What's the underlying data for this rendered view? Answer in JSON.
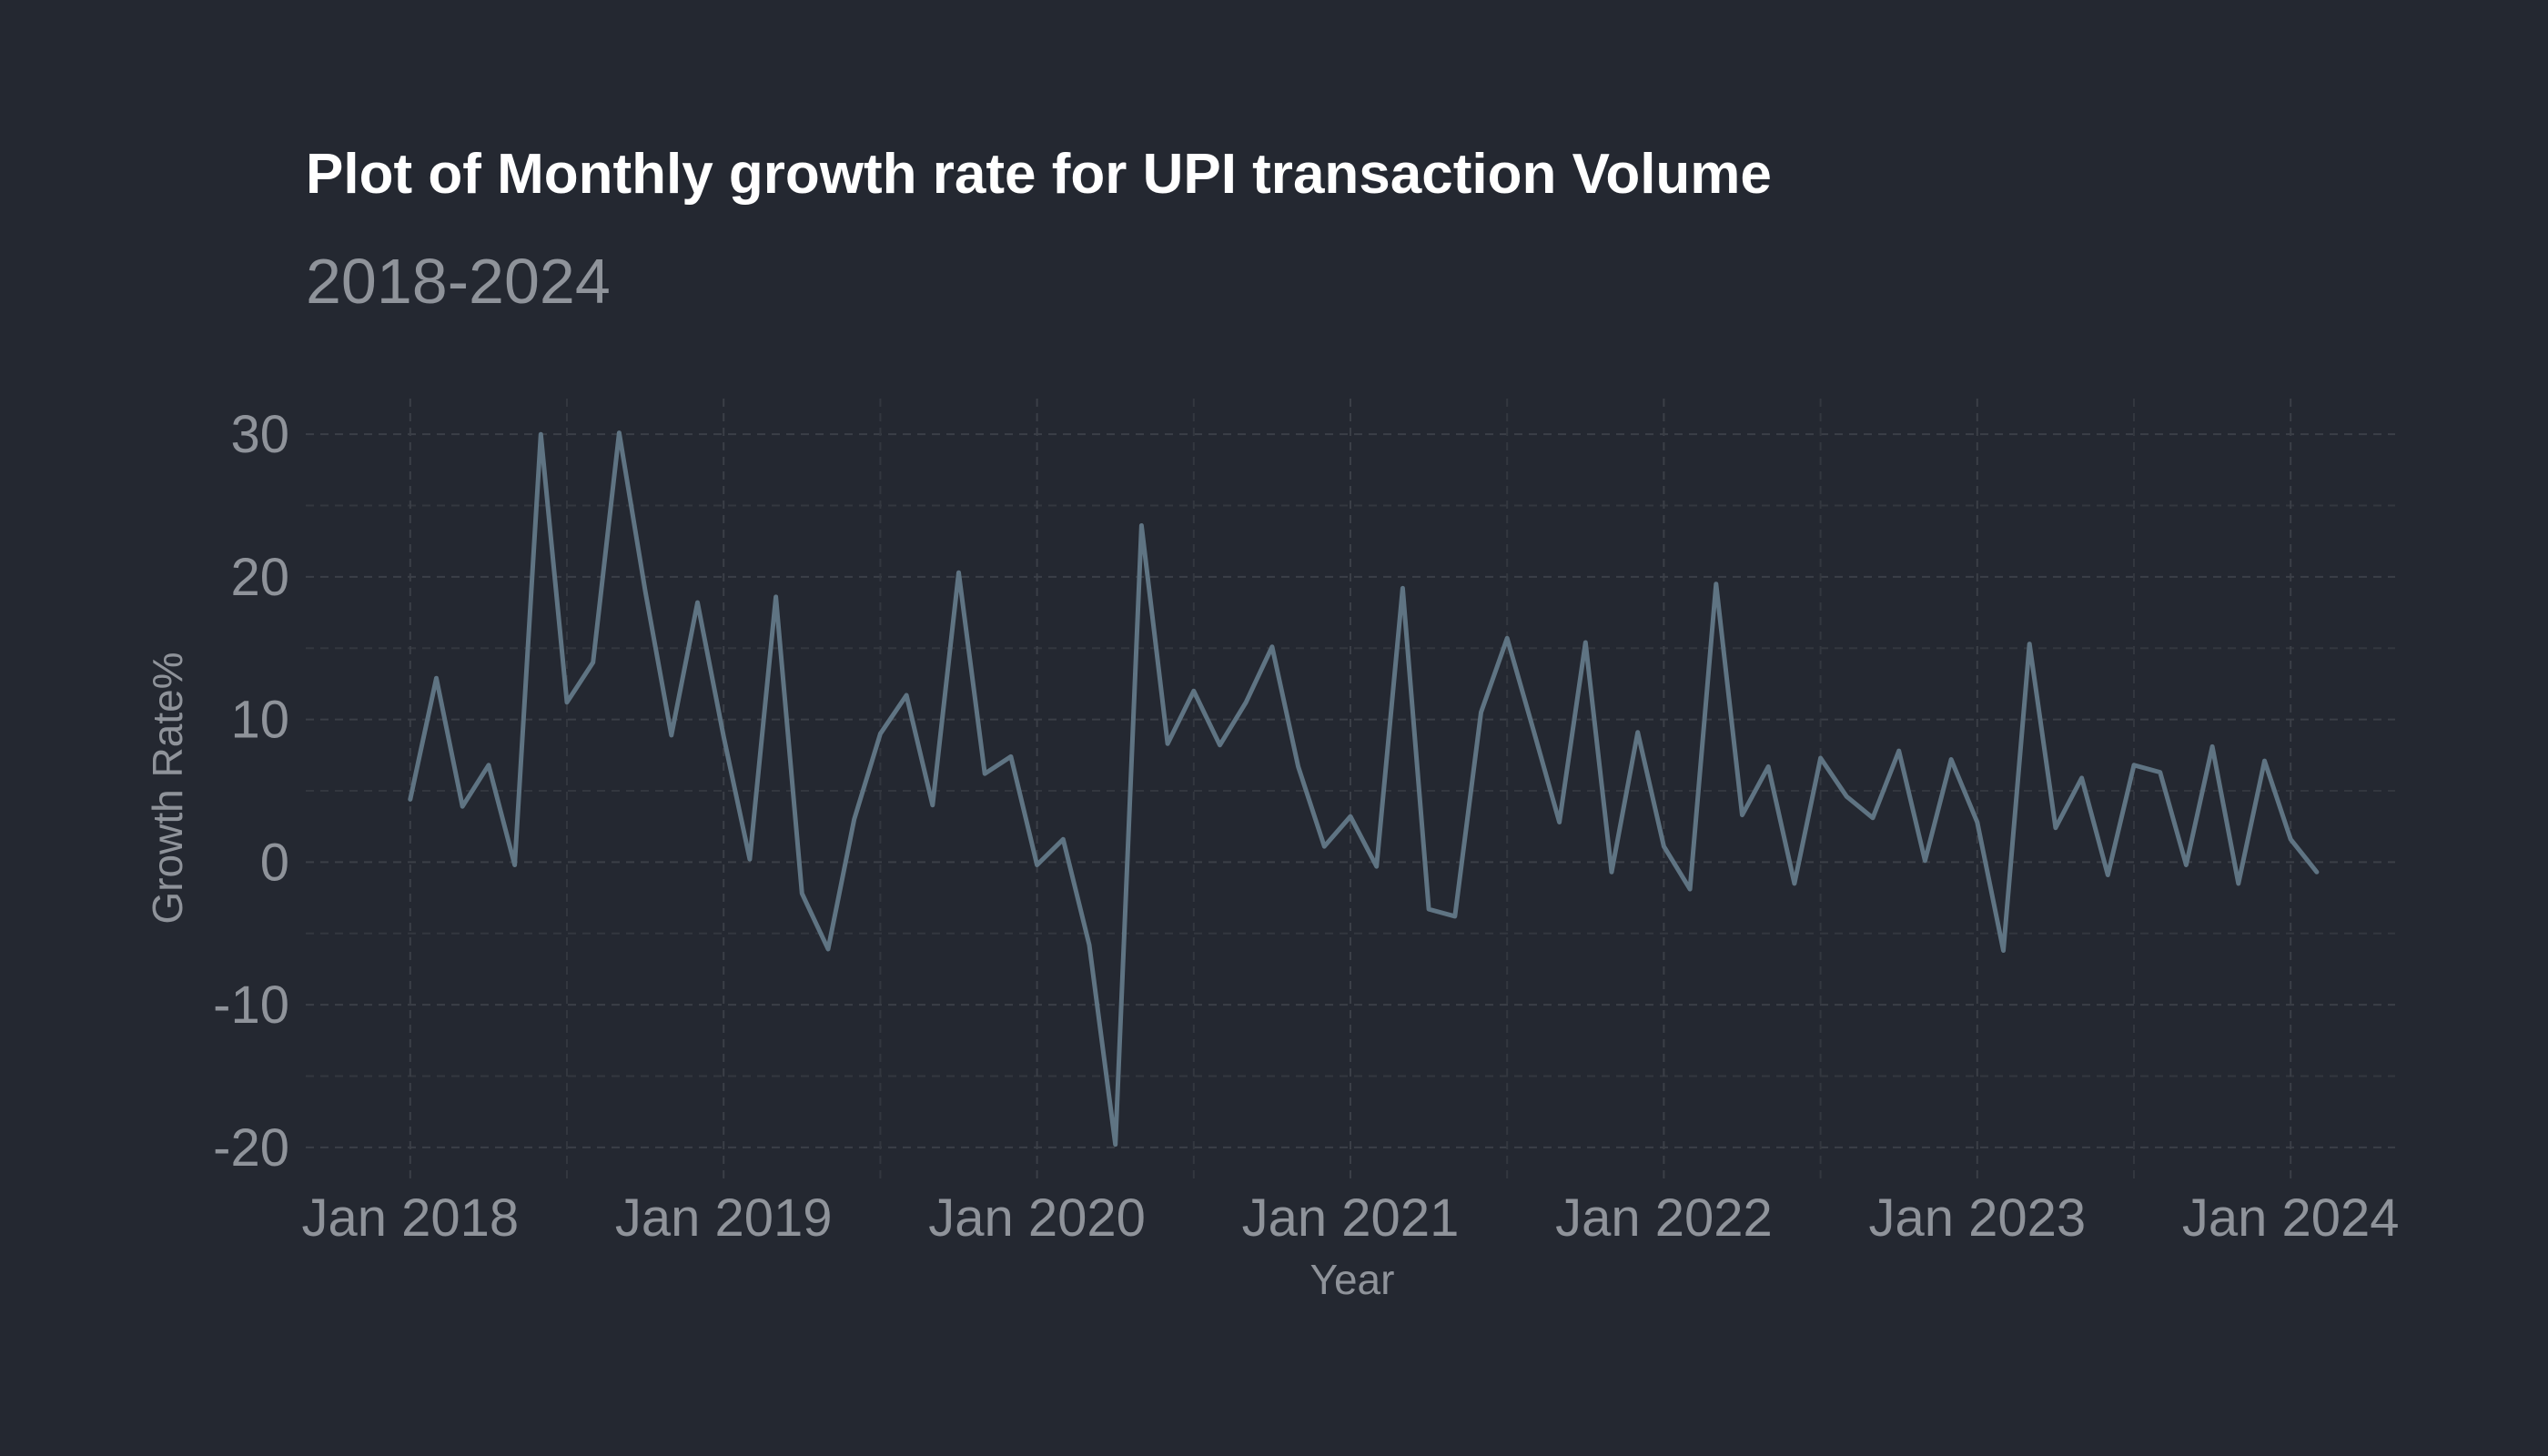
{
  "chart_data": {
    "type": "line",
    "title": "Plot of Monthly growth rate for UPI transaction Volume",
    "subtitle": "2018-2024",
    "xlabel": "Year",
    "ylabel": "Growth Rate%",
    "x_start": "2018-01",
    "x_tick_labels": [
      "Jan 2018",
      "Jan 2019",
      "Jan 2020",
      "Jan 2021",
      "Jan 2022",
      "Jan 2023",
      "Jan 2024"
    ],
    "y_ticks": [
      -20,
      -10,
      0,
      10,
      20,
      30
    ],
    "y_tick_labels": [
      "-20",
      "-10",
      "0",
      "10",
      "20",
      "30"
    ],
    "ylim": [
      -22.5,
      32.5
    ],
    "xlim": [
      "2017-09",
      "2024-05"
    ],
    "grid": true,
    "line_color": "#5f7483",
    "series": [
      {
        "x": [
          "2018-01",
          "2018-02",
          "2018-03",
          "2018-04",
          "2018-05",
          "2018-06",
          "2018-07",
          "2018-08",
          "2018-09",
          "2018-10",
          "2018-11",
          "2018-12",
          "2019-01",
          "2019-02",
          "2019-03",
          "2019-04",
          "2019-05",
          "2019-06",
          "2019-07",
          "2019-08",
          "2019-09",
          "2019-10",
          "2019-11",
          "2019-12",
          "2020-01",
          "2020-02",
          "2020-03",
          "2020-04",
          "2020-05",
          "2020-06",
          "2020-07",
          "2020-08",
          "2020-09",
          "2020-10",
          "2020-11",
          "2020-12",
          "2021-01",
          "2021-02",
          "2021-03",
          "2021-04",
          "2021-05",
          "2021-06",
          "2021-07",
          "2021-08",
          "2021-09",
          "2021-10",
          "2021-11",
          "2021-12",
          "2022-01",
          "2022-02",
          "2022-03",
          "2022-04",
          "2022-05",
          "2022-06",
          "2022-07",
          "2022-08",
          "2022-09",
          "2022-10",
          "2022-11",
          "2022-12",
          "2023-01",
          "2023-02",
          "2023-03",
          "2023-04",
          "2023-05",
          "2023-06",
          "2023-07",
          "2023-08",
          "2023-09",
          "2023-10",
          "2023-11",
          "2023-12",
          "2024-01",
          "2024-02"
        ],
        "values": [
          4.4,
          12.9,
          3.9,
          6.8,
          -0.2,
          30.0,
          11.2,
          14.0,
          30.1,
          19.0,
          8.9,
          18.2,
          8.8,
          0.2,
          18.6,
          -2.2,
          -6.1,
          3.0,
          9.0,
          11.7,
          4.0,
          20.3,
          6.2,
          7.4,
          -0.2,
          1.6,
          -5.8,
          -19.8,
          23.6,
          8.3,
          12.0,
          8.2,
          11.2,
          15.1,
          6.7,
          1.1,
          3.2,
          -0.3,
          19.2,
          -3.3,
          -3.8,
          10.5,
          15.7,
          9.3,
          2.8,
          15.4,
          -0.7,
          9.1,
          1.1,
          -1.9,
          19.5,
          3.3,
          6.7,
          -1.5,
          7.3,
          4.6,
          3.1,
          7.8,
          0.1,
          7.2,
          2.8,
          -6.2,
          15.3,
          2.4,
          5.9,
          -0.9,
          6.8,
          6.3,
          -0.2,
          8.1,
          -1.5,
          7.1,
          1.6,
          -0.7
        ]
      }
    ]
  }
}
